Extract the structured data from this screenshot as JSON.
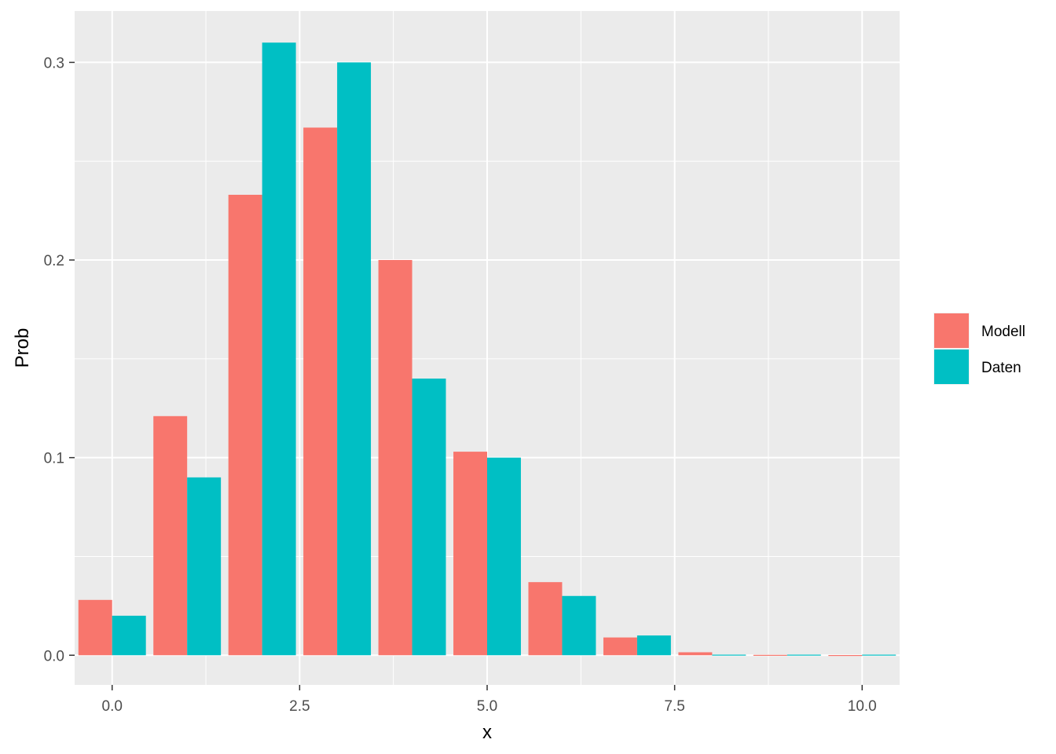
{
  "chart_data": {
    "type": "bar",
    "x": [
      0,
      1,
      2,
      3,
      4,
      5,
      6,
      7,
      8,
      9,
      10
    ],
    "series": [
      {
        "name": "Modell",
        "color": "#F8766D",
        "values": [
          0.028,
          0.121,
          0.233,
          0.267,
          0.2,
          0.103,
          0.037,
          0.009,
          0.0015,
          0.0002,
          0.0001
        ]
      },
      {
        "name": "Daten",
        "color": "#00BFC4",
        "values": [
          0.02,
          0.09,
          0.31,
          0.3,
          0.14,
          0.1,
          0.03,
          0.01,
          0.0003,
          0.0003,
          0.0003
        ]
      }
    ],
    "xlabel": "x",
    "ylabel": "Prob",
    "xlim": [
      -0.5,
      10.5
    ],
    "ylim": [
      -0.015,
      0.326
    ],
    "xticks": [
      "0.0",
      "2.5",
      "5.0",
      "7.5",
      "10.0"
    ],
    "xtick_values": [
      0,
      2.5,
      5,
      7.5,
      10
    ],
    "yticks": [
      "0.0",
      "0.1",
      "0.2",
      "0.3"
    ],
    "ytick_values": [
      0,
      0.1,
      0.2,
      0.3
    ],
    "grid": true,
    "legend_position": "right",
    "panel_background": "#EBEBEB",
    "grid_color": "#FFFFFF"
  }
}
